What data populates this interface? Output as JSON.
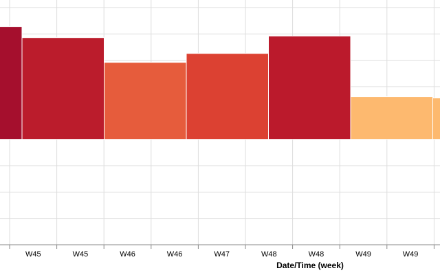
{
  "chart_data": {
    "type": "bar",
    "x_title": "Date/Time (week)",
    "x_tick_labels": [
      "W45",
      "W45",
      "W46",
      "W46",
      "W47",
      "W48",
      "W48",
      "W49",
      "W49"
    ],
    "categories": [
      null,
      null,
      null,
      null,
      null,
      null,
      null
    ],
    "values": [
      4.28,
      3.86,
      2.92,
      3.26,
      3.92,
      1.62,
      1.57
    ],
    "colors": [
      "#a50f2d",
      "#bb1c2c",
      "#e65c3c",
      "#dc4132",
      "#bb1a2c",
      "#fdb96f",
      "#fdb96f"
    ],
    "ylim": [
      -4,
      5
    ],
    "ygrid": [
      -4,
      -3,
      -2,
      -1,
      0,
      1,
      2,
      3,
      4,
      5
    ],
    "grid": true
  }
}
